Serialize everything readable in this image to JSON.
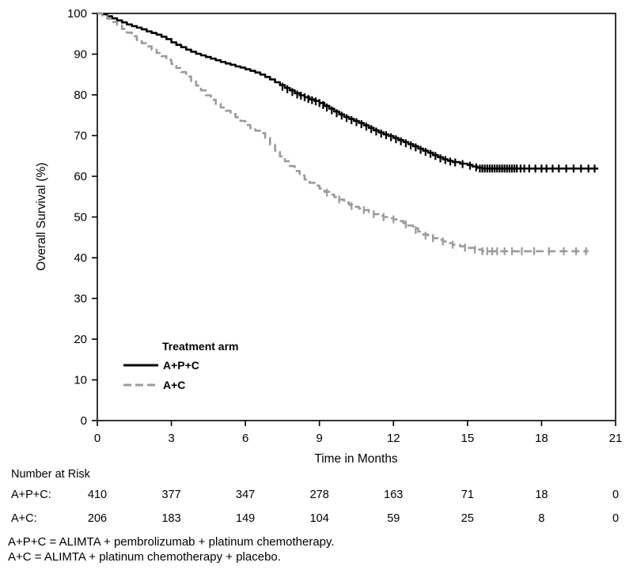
{
  "figure": {
    "background": "#ffffff"
  },
  "chart_data": {
    "type": "line",
    "subtype": "kaplan-meier-step",
    "title": "",
    "xlabel": "Time in Months",
    "ylabel": "Overall Survival (%)",
    "xlim": [
      0,
      21
    ],
    "ylim": [
      0,
      100
    ],
    "xticks": [
      0,
      3,
      6,
      9,
      12,
      15,
      18,
      21
    ],
    "yticks": [
      0,
      10,
      20,
      30,
      40,
      50,
      60,
      70,
      80,
      90,
      100
    ],
    "grid": false,
    "frame_color": "#000000",
    "legend": {
      "title": "Treatment arm",
      "position": "inside-lower-left",
      "entries": [
        {
          "id": "apc",
          "label": "A+P+C",
          "color": "#000000",
          "dash": "solid"
        },
        {
          "id": "ac",
          "label": "A+C",
          "color": "#9b9b9b",
          "dash": "dashed"
        }
      ]
    },
    "series": [
      {
        "id": "apc",
        "name": "A+P+C",
        "color": "#000000",
        "style": "solid",
        "points": [
          [
            0,
            100
          ],
          [
            0.2,
            99.8
          ],
          [
            0.4,
            99.3
          ],
          [
            0.6,
            98.8
          ],
          [
            0.8,
            98.3
          ],
          [
            1,
            97.8
          ],
          [
            1.2,
            97.3
          ],
          [
            1.4,
            96.9
          ],
          [
            1.6,
            96.5
          ],
          [
            1.8,
            96.1
          ],
          [
            2,
            95.6
          ],
          [
            2.2,
            95.2
          ],
          [
            2.4,
            94.8
          ],
          [
            2.6,
            94.3
          ],
          [
            2.8,
            93.7
          ],
          [
            3,
            92.9
          ],
          [
            3.2,
            92.3
          ],
          [
            3.4,
            91.7
          ],
          [
            3.6,
            91.1
          ],
          [
            3.8,
            90.6
          ],
          [
            4,
            90.1
          ],
          [
            4.2,
            89.7
          ],
          [
            4.4,
            89.3
          ],
          [
            4.6,
            88.9
          ],
          [
            4.8,
            88.5
          ],
          [
            5,
            88.1
          ],
          [
            5.2,
            87.7
          ],
          [
            5.4,
            87.4
          ],
          [
            5.6,
            87
          ],
          [
            5.8,
            86.7
          ],
          [
            6,
            86.3
          ],
          [
            6.2,
            85.9
          ],
          [
            6.4,
            85.5
          ],
          [
            6.6,
            85
          ],
          [
            6.8,
            84.4
          ],
          [
            7,
            83.8
          ],
          [
            7.2,
            83.1
          ],
          [
            7.4,
            82.4
          ],
          [
            7.6,
            81.7
          ],
          [
            7.8,
            81.1
          ],
          [
            8,
            80.4
          ],
          [
            8.2,
            79.9
          ],
          [
            8.4,
            79.4
          ],
          [
            8.6,
            78.9
          ],
          [
            8.8,
            78.5
          ],
          [
            9,
            78
          ],
          [
            9.2,
            77.3
          ],
          [
            9.4,
            76.6
          ],
          [
            9.6,
            75.9
          ],
          [
            9.8,
            75.2
          ],
          [
            10,
            74.6
          ],
          [
            10.2,
            74.1
          ],
          [
            10.4,
            73.6
          ],
          [
            10.6,
            73.1
          ],
          [
            10.8,
            72.5
          ],
          [
            11,
            71.9
          ],
          [
            11.2,
            71.3
          ],
          [
            11.4,
            70.8
          ],
          [
            11.6,
            70.3
          ],
          [
            11.8,
            69.9
          ],
          [
            12,
            69.4
          ],
          [
            12.2,
            68.9
          ],
          [
            12.4,
            68.4
          ],
          [
            12.6,
            67.9
          ],
          [
            12.8,
            67.4
          ],
          [
            13,
            66.8
          ],
          [
            13.2,
            66.3
          ],
          [
            13.4,
            65.8
          ],
          [
            13.6,
            65.2
          ],
          [
            13.8,
            64.7
          ],
          [
            14,
            64.2
          ],
          [
            14.2,
            63.8
          ],
          [
            14.4,
            63.5
          ],
          [
            14.7,
            63.1
          ],
          [
            15,
            62.8
          ],
          [
            15.2,
            62.4
          ],
          [
            15.4,
            62.1
          ],
          [
            15.6,
            61.9
          ],
          [
            20.3,
            61.9
          ]
        ],
        "censor_marks": [
          [
            7.5,
            82
          ],
          [
            7.7,
            81.4
          ],
          [
            7.9,
            80.7
          ],
          [
            8.1,
            80.1
          ],
          [
            8.25,
            79.8
          ],
          [
            8.4,
            79.4
          ],
          [
            8.55,
            79
          ],
          [
            8.7,
            78.7
          ],
          [
            8.85,
            78.4
          ],
          [
            9,
            78
          ],
          [
            9.15,
            77.5
          ],
          [
            9.3,
            76.9
          ],
          [
            9.5,
            76.2
          ],
          [
            9.7,
            75.5
          ],
          [
            9.9,
            74.9
          ],
          [
            10.1,
            74.3
          ],
          [
            10.3,
            73.8
          ],
          [
            10.5,
            73.3
          ],
          [
            10.7,
            72.8
          ],
          [
            10.9,
            72.2
          ],
          [
            11.1,
            71.6
          ],
          [
            11.3,
            71
          ],
          [
            11.5,
            70.5
          ],
          [
            11.7,
            70.1
          ],
          [
            11.9,
            69.6
          ],
          [
            12.1,
            69.1
          ],
          [
            12.3,
            68.6
          ],
          [
            12.5,
            68.1
          ],
          [
            12.7,
            67.6
          ],
          [
            12.9,
            67.1
          ],
          [
            13.1,
            66.5
          ],
          [
            13.3,
            66
          ],
          [
            13.5,
            65.5
          ],
          [
            13.7,
            65
          ],
          [
            13.9,
            64.4
          ],
          [
            14.1,
            64
          ],
          [
            14.3,
            63.6
          ],
          [
            14.5,
            63.4
          ],
          [
            14.8,
            63
          ],
          [
            15.1,
            62.6
          ],
          [
            15.35,
            62.2
          ],
          [
            15.5,
            61.9
          ],
          [
            15.6,
            61.9
          ],
          [
            15.7,
            61.9
          ],
          [
            15.8,
            61.9
          ],
          [
            15.9,
            61.9
          ],
          [
            16,
            61.9
          ],
          [
            16.1,
            61.9
          ],
          [
            16.2,
            61.9
          ],
          [
            16.3,
            61.9
          ],
          [
            16.4,
            61.9
          ],
          [
            16.5,
            61.9
          ],
          [
            16.6,
            61.9
          ],
          [
            16.7,
            61.9
          ],
          [
            16.8,
            61.9
          ],
          [
            16.9,
            61.9
          ],
          [
            17,
            61.9
          ],
          [
            17.15,
            61.9
          ],
          [
            17.3,
            61.9
          ],
          [
            17.5,
            61.9
          ],
          [
            17.75,
            61.9
          ],
          [
            18,
            61.9
          ],
          [
            18.2,
            61.9
          ],
          [
            18.45,
            61.9
          ],
          [
            18.7,
            61.9
          ],
          [
            19,
            61.9
          ],
          [
            19.3,
            61.9
          ],
          [
            19.6,
            61.9
          ],
          [
            19.9,
            61.9
          ],
          [
            20.15,
            61.9
          ]
        ]
      },
      {
        "id": "ac",
        "name": "A+C",
        "color": "#9b9b9b",
        "style": "dashed",
        "points": [
          [
            0,
            100
          ],
          [
            0.2,
            99.5
          ],
          [
            0.4,
            98.7
          ],
          [
            0.6,
            97.9
          ],
          [
            0.8,
            97.1
          ],
          [
            1,
            96.2
          ],
          [
            1.2,
            95.3
          ],
          [
            1.4,
            94.4
          ],
          [
            1.6,
            93.5
          ],
          [
            1.8,
            92.7
          ],
          [
            2,
            91.9
          ],
          [
            2.2,
            91.1
          ],
          [
            2.4,
            90.3
          ],
          [
            2.6,
            89.5
          ],
          [
            2.8,
            88.6
          ],
          [
            3,
            87.6
          ],
          [
            3.2,
            86.6
          ],
          [
            3.4,
            85.6
          ],
          [
            3.6,
            84.5
          ],
          [
            3.8,
            83.4
          ],
          [
            4,
            82.3
          ],
          [
            4.2,
            81.1
          ],
          [
            4.4,
            79.9
          ],
          [
            4.6,
            78.8
          ],
          [
            4.8,
            77.8
          ],
          [
            5,
            76.9
          ],
          [
            5.2,
            76.1
          ],
          [
            5.4,
            75.3
          ],
          [
            5.6,
            74.5
          ],
          [
            5.8,
            73.6
          ],
          [
            6,
            72.6
          ],
          [
            6.2,
            71.8
          ],
          [
            6.4,
            71.2
          ],
          [
            6.6,
            70.6
          ],
          [
            6.8,
            69.4
          ],
          [
            7,
            67.8
          ],
          [
            7.2,
            66.3
          ],
          [
            7.4,
            64.9
          ],
          [
            7.6,
            63.7
          ],
          [
            7.8,
            62.5
          ],
          [
            8,
            61.3
          ],
          [
            8.2,
            60.2
          ],
          [
            8.4,
            59.2
          ],
          [
            8.6,
            58.4
          ],
          [
            8.8,
            57.7
          ],
          [
            9,
            57
          ],
          [
            9.2,
            56.2
          ],
          [
            9.4,
            55.5
          ],
          [
            9.6,
            54.9
          ],
          [
            9.8,
            54.3
          ],
          [
            10,
            53.6
          ],
          [
            10.2,
            53
          ],
          [
            10.4,
            52.5
          ],
          [
            10.6,
            52.1
          ],
          [
            10.8,
            51.7
          ],
          [
            11,
            51.2
          ],
          [
            11.2,
            50.7
          ],
          [
            11.4,
            50.3
          ],
          [
            11.6,
            50
          ],
          [
            11.8,
            49.7
          ],
          [
            12,
            49.4
          ],
          [
            12.2,
            49
          ],
          [
            12.4,
            48.5
          ],
          [
            12.6,
            47.9
          ],
          [
            12.8,
            47.2
          ],
          [
            13,
            46.4
          ],
          [
            13.2,
            45.7
          ],
          [
            13.4,
            45.2
          ],
          [
            13.6,
            44.8
          ],
          [
            13.8,
            44.4
          ],
          [
            14,
            44
          ],
          [
            14.2,
            43.6
          ],
          [
            14.4,
            43.2
          ],
          [
            14.7,
            42.8
          ],
          [
            15,
            42.4
          ],
          [
            15.3,
            42
          ],
          [
            15.6,
            41.6
          ],
          [
            19.9,
            41.6
          ]
        ],
        "censor_marks": [
          [
            9.3,
            56
          ],
          [
            9.8,
            54.3
          ],
          [
            10.3,
            52.7
          ],
          [
            10.8,
            51.7
          ],
          [
            11.2,
            50.7
          ],
          [
            11.6,
            50
          ],
          [
            12,
            49.4
          ],
          [
            12.5,
            48.2
          ],
          [
            12.9,
            46.8
          ],
          [
            13.3,
            45.4
          ],
          [
            13.6,
            44.8
          ],
          [
            14,
            44
          ],
          [
            14.4,
            43.2
          ],
          [
            14.9,
            42.5
          ],
          [
            15.3,
            42
          ],
          [
            15.6,
            41.6
          ],
          [
            15.8,
            41.6
          ],
          [
            16,
            41.6
          ],
          [
            16.2,
            41.6
          ],
          [
            16.5,
            41.6
          ],
          [
            16.8,
            41.6
          ],
          [
            17.2,
            41.6
          ],
          [
            17.7,
            41.6
          ],
          [
            18.3,
            41.6
          ],
          [
            18.9,
            41.6
          ],
          [
            19.4,
            41.6
          ],
          [
            19.8,
            41.6
          ]
        ]
      }
    ]
  },
  "risk_table": {
    "title": "Number at Risk",
    "time_points": [
      0,
      3,
      6,
      9,
      12,
      15,
      18,
      21
    ],
    "rows": [
      {
        "label": "A+P+C:",
        "counts": [
          410,
          377,
          347,
          278,
          163,
          71,
          18,
          0
        ]
      },
      {
        "label": "A+C:",
        "counts": [
          206,
          183,
          149,
          104,
          59,
          25,
          8,
          0
        ]
      }
    ]
  },
  "footnotes": [
    "A+P+C = ALIMTA + pembrolizumab + platinum chemotherapy.",
    "A+C = ALIMTA + platinum chemotherapy + placebo."
  ]
}
